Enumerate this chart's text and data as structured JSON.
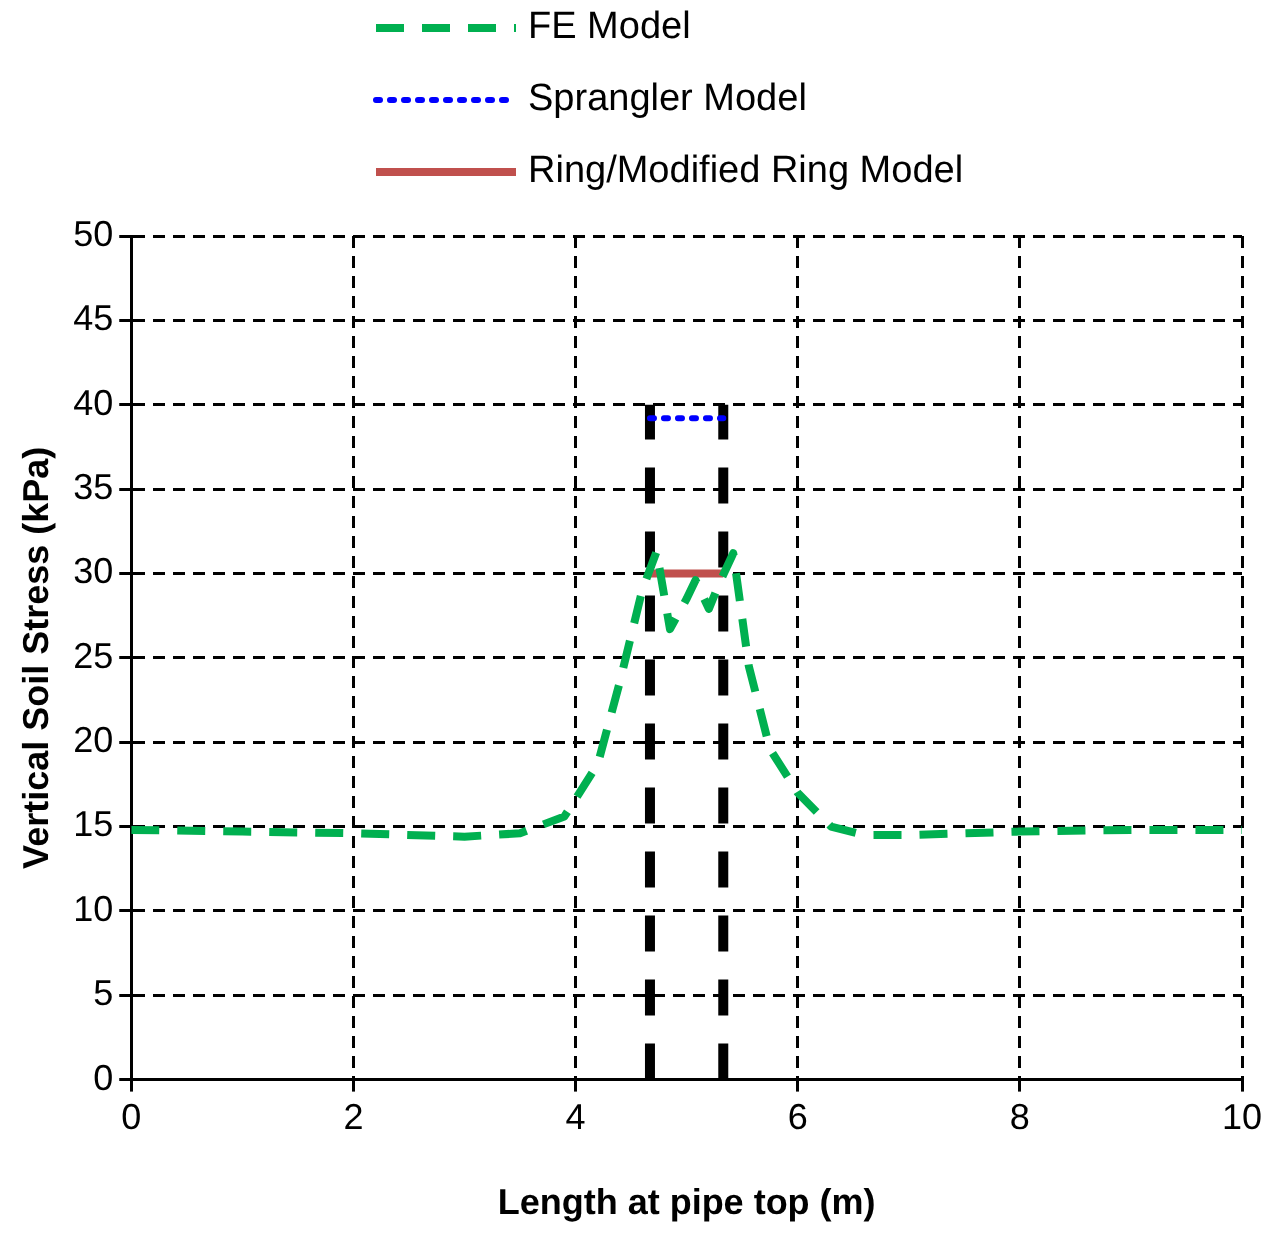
{
  "chart_data": {
    "type": "line",
    "xlabel": "Length at pipe top (m)",
    "ylabel": "Vertical Soil Stress (kPa)",
    "xlim": [
      0,
      10
    ],
    "xticks": [
      0,
      2,
      4,
      6,
      8,
      10
    ],
    "ylim": [
      0,
      50
    ],
    "yticks": [
      0,
      5,
      10,
      15,
      20,
      25,
      30,
      35,
      40,
      45,
      50
    ],
    "grid": true,
    "legend": "top",
    "marker": "none",
    "series": [
      {
        "name": "FE Model",
        "color": "#00b050",
        "line_style": "dashed",
        "x": [
          0,
          1,
          2,
          3,
          3.5,
          3.9,
          4.2,
          4.4,
          4.6,
          4.73,
          4.85,
          5.0,
          5.08,
          5.2,
          5.3,
          5.42,
          5.56,
          5.75,
          6.0,
          6.3,
          6.6,
          7,
          8,
          9,
          10
        ],
        "values": [
          14.8,
          14.7,
          14.6,
          14.4,
          14.6,
          15.6,
          18.7,
          23.6,
          29,
          31.3,
          26.7,
          28.5,
          29.6,
          27.9,
          29.5,
          31.2,
          24.5,
          19.6,
          17,
          15,
          14.5,
          14.5,
          14.7,
          14.8,
          14.8
        ]
      },
      {
        "name": "Sprangler Model",
        "color": "#0000ff",
        "line_style": "dotted",
        "x": [
          4.67,
          5.33
        ],
        "values": [
          39.2,
          39.2
        ]
      },
      {
        "name": "Ring/Modified Ring Model",
        "color": "#c0504d",
        "line_style": "solid",
        "x": [
          4.67,
          5.33
        ],
        "values": [
          30,
          30
        ]
      },
      {
        "color": "#000000",
        "line_style": "dashed",
        "x": [
          4.67,
          4.67
        ],
        "values": [
          0,
          40
        ]
      },
      {
        "color": "#000000",
        "line_style": "dashed",
        "x": [
          5.33,
          5.33
        ],
        "values": [
          0,
          40
        ]
      }
    ]
  }
}
